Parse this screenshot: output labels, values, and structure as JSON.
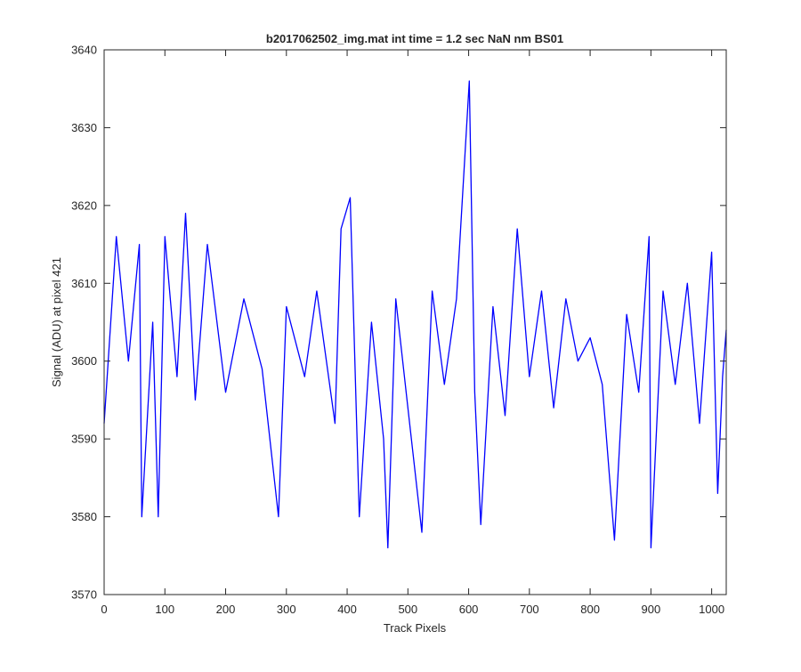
{
  "chart_data": {
    "type": "line",
    "title": "b2017062502_img.mat int time = 1.2 sec  NaN nm BS01",
    "xlabel": "Track Pixels",
    "ylabel": "Signal (ADU) at pixel 421",
    "xlim": [
      0,
      1024
    ],
    "ylim": [
      3570,
      3640
    ],
    "x_ticks": [
      0,
      100,
      200,
      300,
      400,
      500,
      600,
      700,
      800,
      900,
      1000
    ],
    "y_ticks": [
      3570,
      3580,
      3590,
      3600,
      3610,
      3620,
      3630,
      3640
    ],
    "grid": false,
    "legend": "none",
    "series": [
      {
        "color": "#0000ff",
        "x": [
          0,
          20,
          40,
          58,
          62,
          80,
          89,
          100,
          120,
          134,
          150,
          170,
          200,
          230,
          260,
          287,
          300,
          330,
          350,
          380,
          390,
          405,
          420,
          440,
          460,
          467,
          480,
          500,
          523,
          540,
          560,
          580,
          601,
          610,
          620,
          640,
          660,
          680,
          700,
          720,
          740,
          760,
          780,
          800,
          820,
          840,
          860,
          880,
          897,
          900,
          920,
          940,
          960,
          980,
          1000,
          1010,
          1018,
          1024
        ],
        "y": [
          3592,
          3616,
          3600,
          3615,
          3580,
          3605,
          3580,
          3616,
          3598,
          3619,
          3595,
          3615,
          3596,
          3608,
          3599,
          3580,
          3607,
          3598,
          3609,
          3592,
          3617,
          3621,
          3580,
          3605,
          3590,
          3576,
          3608,
          3594,
          3578,
          3609,
          3597,
          3608,
          3636,
          3596,
          3579,
          3607,
          3593,
          3617,
          3598,
          3609,
          3594,
          3608,
          3600,
          3603,
          3597,
          3577,
          3606,
          3596,
          3616,
          3576,
          3609,
          3597,
          3610,
          3592,
          3614,
          3583,
          3598,
          3604
        ]
      }
    ]
  }
}
